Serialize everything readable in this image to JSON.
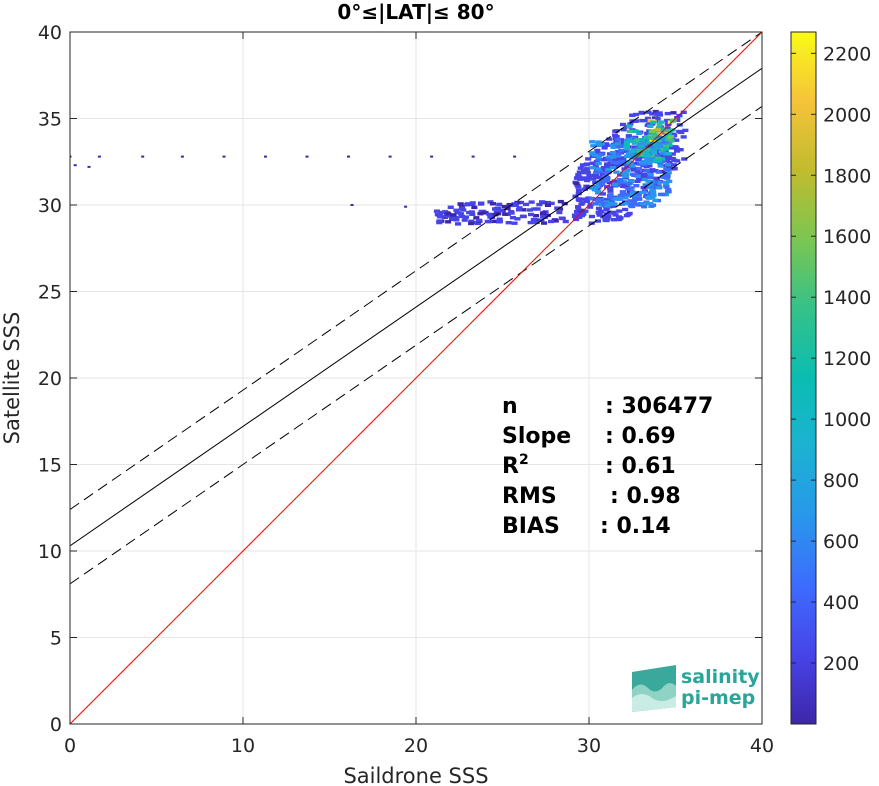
{
  "chart_data": {
    "type": "heatmap",
    "title": "0°≤|LAT|≤ 80°",
    "xlabel": "Saildrone SSS",
    "ylabel": "Satellite SSS",
    "xlim": [
      0,
      40
    ],
    "ylim": [
      0,
      40
    ],
    "xticks": [
      "0",
      "10",
      "20",
      "30",
      "40"
    ],
    "yticks": [
      "0",
      "5",
      "10",
      "15",
      "20",
      "25",
      "30",
      "35",
      "40"
    ],
    "grid": true,
    "colorbar": {
      "min": 0,
      "max": 2270,
      "ticks": [
        "200",
        "400",
        "600",
        "800",
        "1000",
        "1200",
        "1400",
        "1600",
        "1800",
        "2000",
        "2200"
      ],
      "tick_values": [
        200,
        400,
        600,
        800,
        1000,
        1200,
        1400,
        1600,
        1800,
        2000,
        2200
      ],
      "colors": [
        "#3e26a8",
        "#4744e8",
        "#3d6cfe",
        "#2897eb",
        "#1cb2d2",
        "#0abdb2",
        "#35c189",
        "#7bc652",
        "#c1bb2e",
        "#f6c33a",
        "#f9fb15"
      ]
    },
    "lines": {
      "identity": {
        "slope": 1,
        "intercept": 0,
        "color": "#ff0000"
      },
      "fit": {
        "slope": 0.69,
        "intercept": 10.3,
        "color": "#000000"
      },
      "fit_upper": {
        "slope": 0.69,
        "intercept": 12.4,
        "color": "#000000",
        "dashed": true
      },
      "fit_lower": {
        "slope": 0.69,
        "intercept": 8.1,
        "color": "#000000",
        "dashed": true
      }
    },
    "density_clusters": [
      {
        "x": [
          29.0,
          35.4
        ],
        "y": [
          29.0,
          35.5
        ],
        "level": 0.08
      },
      {
        "x": [
          21.0,
          28.5
        ],
        "y": [
          29.0,
          30.3
        ],
        "level": 0.06
      },
      {
        "x": [
          30.0,
          34.5
        ],
        "y": [
          30.0,
          34.0
        ],
        "level": 0.25
      },
      {
        "x": [
          32.0,
          34.5
        ],
        "y": [
          32.5,
          34.7
        ],
        "level": 0.45
      },
      {
        "x": [
          33.3,
          34.8
        ],
        "y": [
          33.8,
          35.0
        ],
        "level": 0.75
      }
    ],
    "sparse_points": [
      {
        "x": 0.0,
        "y": 32.8
      },
      {
        "x": 0.3,
        "y": 32.3
      },
      {
        "x": 1.1,
        "y": 32.2
      },
      {
        "x": 1.7,
        "y": 32.8
      },
      {
        "x": 4.2,
        "y": 32.8
      },
      {
        "x": 6.5,
        "y": 32.8
      },
      {
        "x": 8.9,
        "y": 32.8
      },
      {
        "x": 11.3,
        "y": 32.8
      },
      {
        "x": 13.7,
        "y": 32.8
      },
      {
        "x": 16.1,
        "y": 32.8
      },
      {
        "x": 18.5,
        "y": 32.8
      },
      {
        "x": 20.9,
        "y": 32.8
      },
      {
        "x": 23.3,
        "y": 32.8
      },
      {
        "x": 25.7,
        "y": 32.8
      },
      {
        "x": 16.3,
        "y": 30.0
      },
      {
        "x": 19.4,
        "y": 29.9
      }
    ],
    "stats": [
      {
        "label": "n",
        "value": ": 306477"
      },
      {
        "label": "Slope",
        "value": ": 0.69"
      },
      {
        "label": "R",
        "sup": "2",
        "value": ": 0.61"
      },
      {
        "label": "RMS",
        "value": ": 0.98"
      },
      {
        "label": "BIAS",
        "value": ": 0.14"
      }
    ]
  },
  "logo": {
    "line1": "salinity",
    "line2": "pi-mep"
  }
}
